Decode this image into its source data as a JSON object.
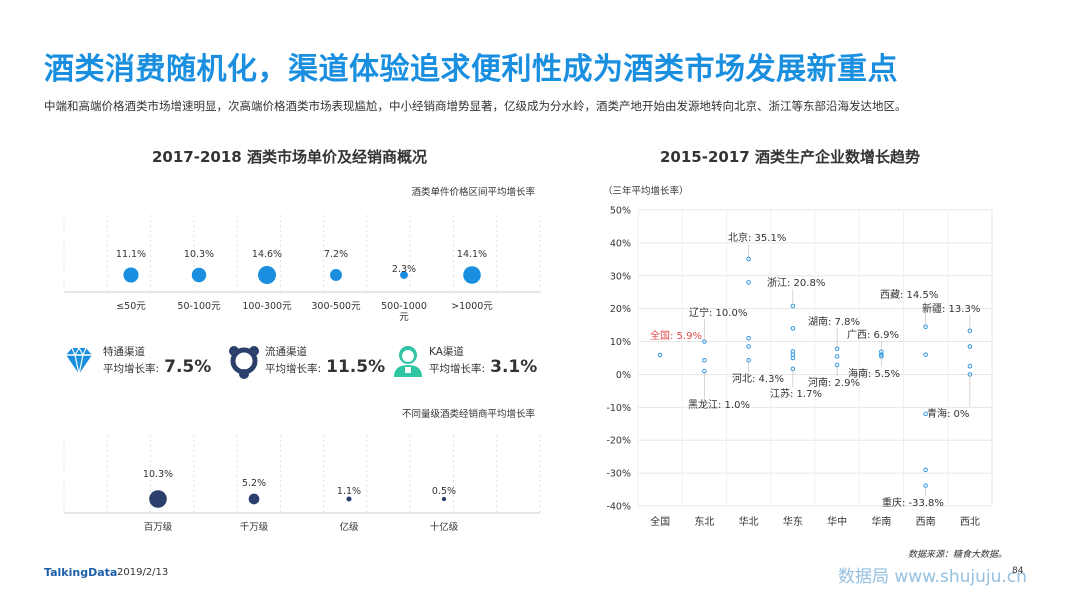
{
  "title": "酒类消费随机化，渠道体验追求便利性成为酒类市场发展新重点",
  "subtitle": "中端和高端价格酒类市场增速明显，次高端价格酒类市场表现尴尬，中小经销商增势显著，亿级成为分水岭，酒类产地开始由发源地转向北京、浙江等东部沿海发达地区。",
  "footer": {
    "logo": "TalkingData",
    "date": "2019/2/13",
    "source": "数据来源：糖食大数据。",
    "page": "84",
    "watermark": "数据局 www.shujuju.cn"
  },
  "left_panel": {
    "title": "2017-2018  酒类市场单价及经销商概况",
    "channels": [
      {
        "name": "特通渠道",
        "rate_label": "平均增长率:",
        "rate": "7.5%",
        "icon": "diamond-icon"
      },
      {
        "name": "流通渠道",
        "rate_label": "平均增长率:",
        "rate": "11.5%",
        "icon": "network-icon"
      },
      {
        "name": "KA渠道",
        "rate_label": "平均增长率:",
        "rate": "3.1%",
        "icon": "person-icon"
      }
    ]
  },
  "right_panel": {
    "title": "2015-2017  酒类生产企业数增长趋势"
  },
  "chart_data": [
    {
      "type": "scatter",
      "title": "酒类单件价格区间平均增长率",
      "categories": [
        "≤50元",
        "50-100元",
        "100-300元",
        "300-500元",
        "500-1000\n元",
        ">1000元"
      ],
      "values": [
        11.1,
        10.3,
        14.6,
        7.2,
        2.3,
        14.1
      ],
      "labels": [
        "11.1%",
        "10.3%",
        "14.6%",
        "7.2%",
        "2.3%",
        "14.1%"
      ],
      "color": "#1a8fe0"
    },
    {
      "type": "scatter",
      "title": "不同量级酒类经销商平均增长率",
      "categories": [
        "百万级",
        "千万级",
        "亿级",
        "十亿级"
      ],
      "values": [
        10.3,
        5.2,
        1.1,
        0.5
      ],
      "labels": [
        "10.3%",
        "5.2%",
        "1.1%",
        "0.5%"
      ],
      "color": "#2a3f6b"
    },
    {
      "type": "scatter",
      "title": "",
      "ylabel": "（三年平均增长率）",
      "categories": [
        "全国",
        "东北",
        "华北",
        "华东",
        "华中",
        "华南",
        "西南",
        "西北"
      ],
      "ylim": [
        -40,
        50
      ],
      "yticks": [
        50,
        40,
        30,
        20,
        10,
        0,
        -10,
        -20,
        -30,
        -40
      ],
      "ytick_labels": [
        "50%",
        "40%",
        "30%",
        "20%",
        "10%",
        "0%",
        "-10%",
        "-20%",
        "-30%",
        "-40%"
      ],
      "grid": true,
      "points": [
        {
          "category": "全国",
          "value": 5.9
        },
        {
          "category": "东北",
          "value": 10.0
        },
        {
          "category": "东北",
          "value": 4.3
        },
        {
          "category": "东北",
          "value": 1.0
        },
        {
          "category": "华北",
          "value": 35.1
        },
        {
          "category": "华北",
          "value": 28.0
        },
        {
          "category": "华北",
          "value": 11.0
        },
        {
          "category": "华北",
          "value": 8.5
        },
        {
          "category": "华北",
          "value": 4.3
        },
        {
          "category": "华东",
          "value": 20.8
        },
        {
          "category": "华东",
          "value": 14.0
        },
        {
          "category": "华东",
          "value": 7.0
        },
        {
          "category": "华东",
          "value": 6.0
        },
        {
          "category": "华东",
          "value": 5.0
        },
        {
          "category": "华东",
          "value": 1.7
        },
        {
          "category": "华中",
          "value": 7.8
        },
        {
          "category": "华中",
          "value": 5.5
        },
        {
          "category": "华中",
          "value": 2.9
        },
        {
          "category": "华南",
          "value": 6.9
        },
        {
          "category": "华南",
          "value": 6.0
        },
        {
          "category": "华南",
          "value": 5.5
        },
        {
          "category": "西南",
          "value": 14.5
        },
        {
          "category": "西南",
          "value": 6.0
        },
        {
          "category": "西南",
          "value": -12.0
        },
        {
          "category": "西南",
          "value": -29.0
        },
        {
          "category": "西南",
          "value": -33.8
        },
        {
          "category": "西北",
          "value": 13.3
        },
        {
          "category": "西北",
          "value": 8.5
        },
        {
          "category": "西北",
          "value": 2.5
        },
        {
          "category": "西北",
          "value": 0.0
        }
      ],
      "annotations": [
        {
          "text": "全国: 5.9%",
          "category": "全国",
          "value": 5.9,
          "highlight": true
        },
        {
          "text": "北京: 35.1%",
          "category": "华北",
          "value": 35.1
        },
        {
          "text": "浙江: 20.8%",
          "category": "华东",
          "value": 20.8
        },
        {
          "text": "辽宁: 10.0%",
          "category": "东北",
          "value": 10.0
        },
        {
          "text": "湖南: 7.8%",
          "category": "华中",
          "value": 7.8
        },
        {
          "text": "广西: 6.9%",
          "category": "华南",
          "value": 6.9
        },
        {
          "text": "西藏: 14.5%",
          "category": "西南",
          "value": 14.5
        },
        {
          "text": "新疆: 13.3%",
          "category": "西北",
          "value": 13.3
        },
        {
          "text": "河北: 4.3%",
          "category": "华北",
          "value": 4.3
        },
        {
          "text": "海南: 5.5%",
          "category": "华南",
          "value": 5.5
        },
        {
          "text": "河南: 2.9%",
          "category": "华中",
          "value": 2.9
        },
        {
          "text": "江苏: 1.7%",
          "category": "华东",
          "value": 1.7
        },
        {
          "text": "黑龙江: 1.0%",
          "category": "东北",
          "value": 1.0
        },
        {
          "text": "青海: 0%",
          "category": "西北",
          "value": 0.0
        },
        {
          "text": "重庆: -33.8%",
          "category": "西南",
          "value": -33.8
        }
      ]
    }
  ]
}
